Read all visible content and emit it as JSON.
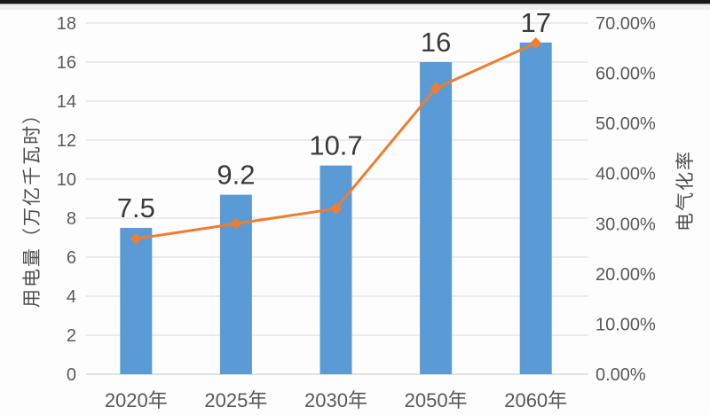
{
  "page": {
    "background": "#fdfdfd",
    "top_border_color": "#161616",
    "top_border_mid_color": "#9b9b9b",
    "top_border_light_color": "#ededed"
  },
  "chart_data": {
    "type": "combo-bar-line",
    "categories": [
      "2020年",
      "2025年",
      "2030年",
      "2050年",
      "2060年"
    ],
    "series": [
      {
        "name": "用电量",
        "type": "bar",
        "axis": "left",
        "values": [
          7.5,
          9.2,
          10.7,
          16,
          17
        ],
        "data_labels": [
          "7.5",
          "9.2",
          "10.7",
          "16",
          "17"
        ],
        "color": "#5B9BD5"
      },
      {
        "name": "电气化率",
        "type": "line",
        "axis": "right",
        "values": [
          27,
          30,
          33,
          57,
          66
        ],
        "marker": "diamond",
        "color": "#ED7D31"
      }
    ],
    "left_axis": {
      "title": "用电量（万亿千瓦时）",
      "min": 0,
      "max": 18,
      "step": 2,
      "tick_labels": [
        "0",
        "2",
        "4",
        "6",
        "8",
        "10",
        "12",
        "14",
        "16",
        "18"
      ]
    },
    "right_axis": {
      "title": "电气化率",
      "min": 0,
      "max": 70,
      "step": 10,
      "tick_labels": [
        "0.00%",
        "10.00%",
        "20.00%",
        "30.00%",
        "40.00%",
        "50.00%",
        "60.00%",
        "70.00%"
      ]
    },
    "grid": true,
    "legend": "none",
    "colors": {
      "grid": "#d9d9d9",
      "axis_line": "#c8c8c8",
      "tick_text": "#595959",
      "data_label_text": "#3a3a3a"
    }
  }
}
